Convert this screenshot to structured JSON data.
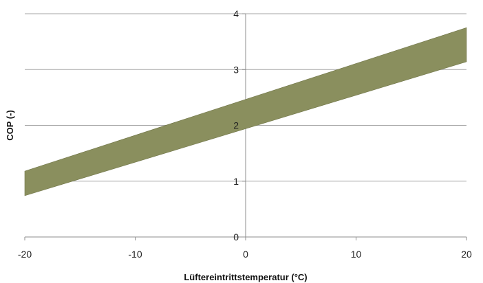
{
  "chart_data": {
    "type": "area",
    "xlabel": "Lüftereintrittstemperatur (°C)",
    "ylabel": "COP (-)",
    "xlim": [
      -20,
      20
    ],
    "ylim": [
      0,
      4
    ],
    "xticks": [
      -20,
      -10,
      0,
      10,
      20
    ],
    "yticks": [
      0,
      1,
      2,
      3,
      4
    ],
    "grid": "horizontal",
    "legend": "none",
    "band": {
      "x": [
        -20,
        20
      ],
      "upper": [
        1.18,
        3.75
      ],
      "lower": [
        0.74,
        3.14
      ]
    },
    "colors": {
      "band": "#8a8f5e",
      "band_edge": "#6f7447",
      "grid": "#a6a6a6",
      "axis": "#8c8c8c"
    }
  }
}
